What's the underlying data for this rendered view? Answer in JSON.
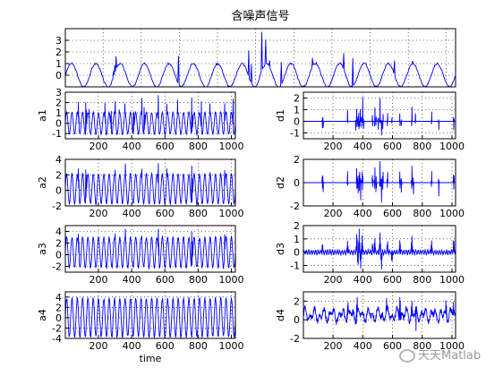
{
  "chart_data": [
    {
      "id": "top",
      "type": "line",
      "title": "含噪声信号",
      "xlabel": "",
      "ylabel": "",
      "xlim": [
        1,
        1024
      ],
      "ylim": [
        -1,
        4
      ],
      "xticks": [],
      "xtick_labels": [],
      "yticks": [
        0,
        1,
        2,
        3
      ],
      "ytick_labels": [
        "0",
        "1",
        "2",
        "3"
      ],
      "grid": true,
      "signal": {
        "base": "sine",
        "amplitude": 1.0,
        "periods": 16,
        "offset": 0
      },
      "spikes": [
        [
          129,
          4.0
        ],
        [
          133,
          3.2
        ],
        [
          298,
          2.0
        ],
        [
          466,
          1.8
        ],
        [
          481,
          3.6
        ],
        [
          490,
          3.0
        ],
        [
          504,
          2.6
        ],
        [
          516,
          3.9
        ],
        [
          526,
          3.3
        ],
        [
          535,
          4.0
        ],
        [
          566,
          2.4
        ],
        [
          650,
          3.3
        ],
        [
          660,
          2.0
        ],
        [
          730,
          3.0
        ],
        [
          754,
          2.1
        ],
        [
          863,
          2.0
        ],
        [
          911,
          1.6
        ],
        [
          1012,
          3.8
        ]
      ],
      "spike_width": 2,
      "color": "#0000ff"
    },
    {
      "id": "a1",
      "type": "line",
      "title": "",
      "xlabel": "",
      "ylabel": "a1",
      "xlim": [
        1,
        1024
      ],
      "ylim": [
        -1.5,
        3
      ],
      "xticks": [
        200,
        400,
        600,
        800,
        1000
      ],
      "xtick_labels": [
        "200",
        "400",
        "600",
        "800",
        "1000"
      ],
      "yticks": [
        -1,
        0,
        1,
        2,
        3
      ],
      "ytick_labels": [
        "-1",
        "0",
        "1",
        "2",
        "3"
      ],
      "grid": true,
      "signal": {
        "base": "sine",
        "amplitude": 1.05,
        "periods": 32,
        "offset": 0
      },
      "spikes": [
        [
          80,
          2.4
        ],
        [
          125,
          2.9
        ],
        [
          143,
          2.0
        ],
        [
          240,
          2.1
        ],
        [
          276,
          1.7
        ],
        [
          300,
          2.9
        ],
        [
          326,
          1.8
        ],
        [
          360,
          2.5
        ],
        [
          412,
          1.9
        ],
        [
          461,
          2.7
        ],
        [
          476,
          2.1
        ],
        [
          560,
          2.9
        ],
        [
          612,
          2.2
        ],
        [
          676,
          2.4
        ],
        [
          762,
          2.9
        ],
        [
          820,
          2.5
        ],
        [
          870,
          2.2
        ],
        [
          960,
          2.4
        ],
        [
          1010,
          2.6
        ]
      ],
      "spike_width": 4,
      "color": "#0000ff"
    },
    {
      "id": "d1",
      "type": "line",
      "title": "",
      "xlabel": "",
      "ylabel": "d1",
      "xlim": [
        1,
        1024
      ],
      "ylim": [
        -1.5,
        2.5
      ],
      "xticks": [
        200,
        400,
        600,
        800,
        1000
      ],
      "xtick_labels": [
        "200",
        "400",
        "600",
        "800",
        "1000"
      ],
      "yticks": [
        -1,
        0,
        1,
        2
      ],
      "ytick_labels": [
        "-1",
        "0",
        "1",
        "2"
      ],
      "grid": true,
      "signal": {
        "base": "flat",
        "amplitude": 0,
        "periods": 0,
        "offset": 0
      },
      "spikes": [
        [
          129,
          1.6
        ],
        [
          133,
          -1.1
        ],
        [
          298,
          1.2
        ],
        [
          352,
          -0.9
        ],
        [
          360,
          2.0
        ],
        [
          368,
          -1.2
        ],
        [
          374,
          2.1
        ],
        [
          382,
          1.9
        ],
        [
          392,
          -1.3
        ],
        [
          400,
          2.1
        ],
        [
          406,
          -1.0
        ],
        [
          466,
          1.4
        ],
        [
          481,
          2.0
        ],
        [
          490,
          -1.2
        ],
        [
          504,
          1.8
        ],
        [
          516,
          2.1
        ],
        [
          526,
          -1.3
        ],
        [
          535,
          2.0
        ],
        [
          566,
          1.5
        ],
        [
          596,
          -0.8
        ],
        [
          650,
          1.5
        ],
        [
          660,
          -0.7
        ],
        [
          730,
          2.0
        ],
        [
          754,
          1.0
        ],
        [
          863,
          1.3
        ],
        [
          911,
          -1.0
        ],
        [
          1012,
          2.0
        ]
      ],
      "spike_width": 2,
      "color": "#0000ff"
    },
    {
      "id": "a2",
      "type": "line",
      "title": "",
      "xlabel": "",
      "ylabel": "a2",
      "xlim": [
        1,
        1024
      ],
      "ylim": [
        -2,
        4
      ],
      "xticks": [
        200,
        400,
        600,
        800,
        1000
      ],
      "xtick_labels": [
        "200",
        "400",
        "600",
        "800",
        "1000"
      ],
      "yticks": [
        -2,
        0,
        2,
        4
      ],
      "ytick_labels": [
        "-2",
        "0",
        "2",
        "4"
      ],
      "grid": true,
      "signal": {
        "base": "sine",
        "amplitude": 1.9,
        "periods": 32,
        "offset": 0.2
      },
      "spikes": [
        [
          80,
          3.2
        ],
        [
          125,
          3.6
        ],
        [
          300,
          3.4
        ],
        [
          362,
          3.8
        ],
        [
          461,
          3.0
        ],
        [
          560,
          3.7
        ],
        [
          612,
          3.2
        ],
        [
          762,
          3.6
        ],
        [
          960,
          3.1
        ]
      ],
      "spike_width": 5,
      "color": "#0000ff"
    },
    {
      "id": "d2",
      "type": "line",
      "title": "",
      "xlabel": "",
      "ylabel": "d2",
      "xlim": [
        1,
        1024
      ],
      "ylim": [
        -2,
        2
      ],
      "xticks": [
        200,
        400,
        600,
        800,
        1000
      ],
      "xtick_labels": [
        "200",
        "400",
        "600",
        "800",
        "1000"
      ],
      "yticks": [
        -2,
        0,
        2
      ],
      "ytick_labels": [
        "-2",
        "0",
        "2"
      ],
      "grid": true,
      "signal": {
        "base": "flat",
        "amplitude": 0,
        "periods": 0,
        "offset": 0
      },
      "spikes": [
        [
          129,
          1.3
        ],
        [
          133,
          -1.2
        ],
        [
          298,
          1.1
        ],
        [
          360,
          1.8
        ],
        [
          368,
          -1.6
        ],
        [
          378,
          1.9
        ],
        [
          386,
          -1.7
        ],
        [
          398,
          1.8
        ],
        [
          466,
          1.1
        ],
        [
          481,
          1.8
        ],
        [
          490,
          -1.5
        ],
        [
          516,
          1.9
        ],
        [
          526,
          -1.8
        ],
        [
          535,
          1.7
        ],
        [
          566,
          1.4
        ],
        [
          650,
          1.5
        ],
        [
          660,
          -1.2
        ],
        [
          730,
          1.9
        ],
        [
          740,
          -1.5
        ],
        [
          863,
          1.3
        ],
        [
          911,
          -1.4
        ],
        [
          1012,
          1.5
        ]
      ],
      "spike_width": 3,
      "color": "#0000ff"
    },
    {
      "id": "a3",
      "type": "line",
      "title": "",
      "xlabel": "",
      "ylabel": "a3",
      "xlim": [
        1,
        1024
      ],
      "ylim": [
        -3,
        5
      ],
      "xticks": [
        200,
        400,
        600,
        800,
        1000
      ],
      "xtick_labels": [
        "200",
        "400",
        "600",
        "800",
        "1000"
      ],
      "yticks": [
        -2,
        0,
        2,
        4
      ],
      "ytick_labels": [
        "-2",
        "0",
        "2",
        "4"
      ],
      "grid": true,
      "signal": {
        "base": "sine",
        "amplitude": 2.6,
        "periods": 32,
        "offset": 0.4
      },
      "spikes": [
        [
          80,
          4.0
        ],
        [
          300,
          4.4
        ],
        [
          362,
          4.8
        ],
        [
          460,
          4.2
        ],
        [
          560,
          4.6
        ],
        [
          762,
          4.4
        ],
        [
          960,
          4.0
        ]
      ],
      "spike_width": 6,
      "color": "#0000ff"
    },
    {
      "id": "d3",
      "type": "line",
      "title": "",
      "xlabel": "",
      "ylabel": "d3",
      "xlim": [
        1,
        1024
      ],
      "ylim": [
        -1.5,
        2
      ],
      "xticks": [
        200,
        400,
        600,
        800,
        1000
      ],
      "xtick_labels": [
        "200",
        "400",
        "600",
        "800",
        "1000"
      ],
      "yticks": [
        -1,
        0,
        1,
        2
      ],
      "ytick_labels": [
        "-1",
        "0",
        "1",
        "2"
      ],
      "grid": true,
      "signal": {
        "base": "ripple",
        "amplitude": 0.15,
        "periods": 64,
        "offset": 0
      },
      "spikes": [
        [
          129,
          0.8
        ],
        [
          298,
          0.9
        ],
        [
          360,
          1.6
        ],
        [
          368,
          -1.2
        ],
        [
          376,
          1.8
        ],
        [
          386,
          -1.3
        ],
        [
          396,
          1.4
        ],
        [
          466,
          0.8
        ],
        [
          481,
          1.2
        ],
        [
          516,
          1.5
        ],
        [
          526,
          -1.3
        ],
        [
          566,
          1.0
        ],
        [
          596,
          -0.9
        ],
        [
          650,
          1.1
        ],
        [
          730,
          1.4
        ],
        [
          863,
          1.0
        ],
        [
          1012,
          1.2
        ]
      ],
      "spike_width": 6,
      "color": "#0000ff"
    },
    {
      "id": "a4",
      "type": "line",
      "title": "",
      "xlabel": "time",
      "ylabel": "a4",
      "xlim": [
        1,
        1024
      ],
      "ylim": [
        -4,
        5
      ],
      "xticks": [
        200,
        400,
        600,
        800,
        1000
      ],
      "xtick_labels": [
        "200",
        "400",
        "600",
        "800",
        "1000"
      ],
      "yticks": [
        -4,
        -2,
        0,
        2,
        4
      ],
      "ytick_labels": [
        "-4",
        "-2",
        "0",
        "2",
        "4"
      ],
      "grid": true,
      "signal": {
        "base": "sine",
        "amplitude": 3.7,
        "periods": 32,
        "offset": 0
      },
      "spikes": [],
      "spike_width": 0,
      "color": "#0000ff"
    },
    {
      "id": "d4",
      "type": "line",
      "title": "",
      "xlabel": "",
      "ylabel": "d4",
      "xlim": [
        1,
        1024
      ],
      "ylim": [
        -2,
        3
      ],
      "xticks": [
        200,
        400,
        600,
        800,
        1000
      ],
      "xtick_labels": [
        "200",
        "400",
        "600",
        "800",
        "1000"
      ],
      "yticks": [
        -2,
        0,
        2
      ],
      "ytick_labels": [
        "-2",
        "0",
        "2"
      ],
      "grid": true,
      "signal": {
        "base": "wavy",
        "amplitude": 0.8,
        "periods": 24,
        "offset": 0.5
      },
      "spikes": [
        [
          300,
          2.2
        ],
        [
          362,
          2.6
        ],
        [
          560,
          2.4
        ],
        [
          650,
          2.8
        ],
        [
          730,
          2.2
        ],
        [
          760,
          -1.6
        ],
        [
          960,
          2.3
        ],
        [
          1010,
          2.0
        ]
      ],
      "spike_width": 8,
      "color": "#0000ff"
    }
  ],
  "watermark": {
    "text": "天天Matlab",
    "icon": "wechat-icon"
  }
}
